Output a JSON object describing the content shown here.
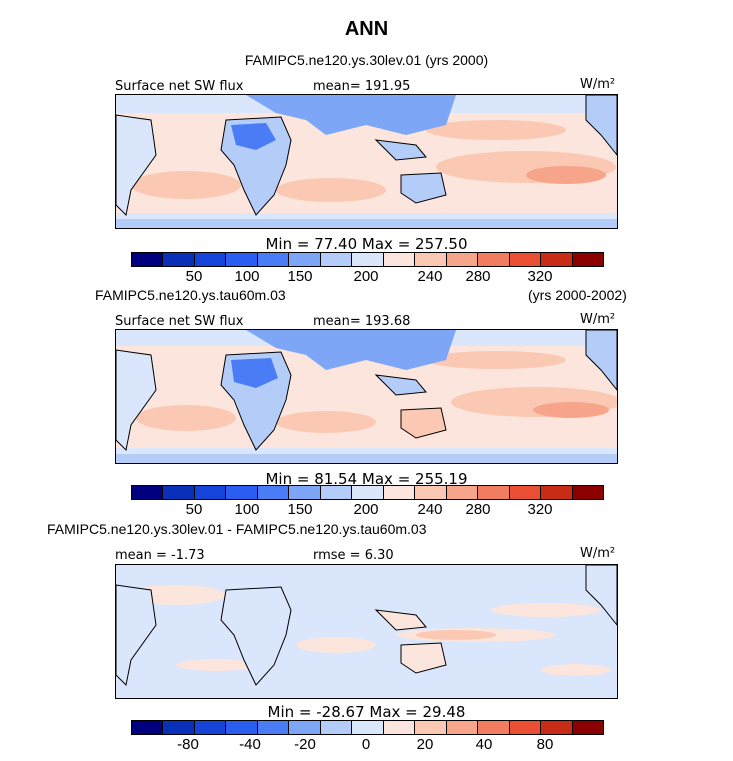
{
  "title": "ANN",
  "colors": {
    "abs": [
      "#00007f",
      "#0a2fb8",
      "#1744d8",
      "#2a5ef0",
      "#4a7df5",
      "#7ea6f7",
      "#b4cdf8",
      "#d9e6fb",
      "#fbe5dc",
      "#fbc9b3",
      "#f7a58a",
      "#f27c5f",
      "#ea4f33",
      "#c82c17",
      "#8b0000"
    ],
    "diff": [
      "#00007f",
      "#0a2fb8",
      "#1744d8",
      "#2a5ef0",
      "#4a7df5",
      "#7ea6f7",
      "#b4cdf8",
      "#d9e6fb",
      "#fbe5dc",
      "#fbc9b3",
      "#f7a58a",
      "#f27c5f",
      "#ea4f33",
      "#c82c17",
      "#8b0000"
    ]
  },
  "panels": [
    {
      "case_title": "FAMIPC5.ne120.ys.30lev.01 (yrs 2000)",
      "variable": "Surface net SW flux",
      "mean_label": "mean= 191.95",
      "units": "W/m²",
      "minmax": "Min =  77.40 Max = 257.50",
      "ticks": [
        "50",
        "100",
        "150",
        "200",
        "240",
        "280",
        "320"
      ]
    },
    {
      "case_title": "FAMIPC5.ne120.ys.tau60m.03",
      "case_years": "(yrs 2000-2002)",
      "variable": "Surface net SW flux",
      "mean_label": "mean= 193.68",
      "units": "W/m²",
      "minmax": "Min =  81.54 Max = 255.19",
      "ticks": [
        "50",
        "100",
        "150",
        "200",
        "240",
        "280",
        "320"
      ]
    },
    {
      "case_title": "FAMIPC5.ne120.ys.30lev.01 - FAMIPC5.ne120.ys.tau60m.03",
      "variable": "mean =  -1.73",
      "mean_label": "rmse =   6.30",
      "units": "W/m²",
      "minmax": "Min = -28.67 Max =  29.48",
      "ticks": [
        "-80",
        "-40",
        "-20",
        "0",
        "20",
        "40",
        "80"
      ]
    }
  ],
  "chart_data": [
    {
      "type": "heatmap",
      "title": "Surface net SW flux",
      "subtitle": "FAMIPC5.ne120.ys.30lev.01 (yrs 2000)",
      "units": "W/m²",
      "mean": 191.95,
      "min": 77.4,
      "max": 257.5,
      "levels": [
        50,
        100,
        150,
        200,
        240,
        280,
        320
      ],
      "domain": "global, 0–360 longitude"
    },
    {
      "type": "heatmap",
      "title": "Surface net SW flux",
      "subtitle": "FAMIPC5.ne120.ys.tau60m.03 (yrs 2000-2002)",
      "units": "W/m²",
      "mean": 193.68,
      "min": 81.54,
      "max": 255.19,
      "levels": [
        50,
        100,
        150,
        200,
        240,
        280,
        320
      ],
      "domain": "global, 0–360 longitude"
    },
    {
      "type": "heatmap",
      "title": "FAMIPC5.ne120.ys.30lev.01 - FAMIPC5.ne120.ys.tau60m.03",
      "units": "W/m²",
      "mean": -1.73,
      "rmse": 6.3,
      "min": -28.67,
      "max": 29.48,
      "levels": [
        -80,
        -40,
        -20,
        0,
        20,
        40,
        80
      ],
      "domain": "global, 0–360 longitude"
    }
  ]
}
